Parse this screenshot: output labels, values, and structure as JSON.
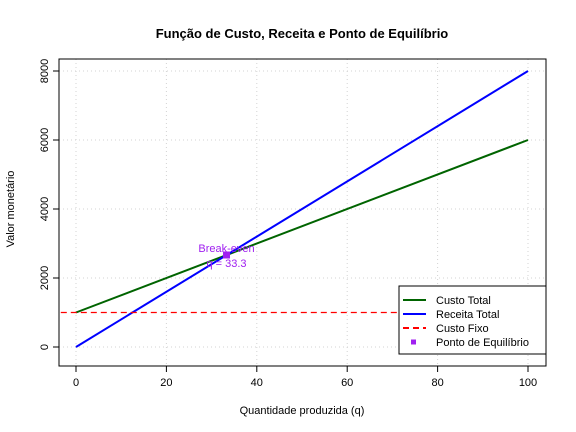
{
  "chart_data": {
    "type": "line",
    "title": "Função de Custo, Receita e Ponto de Equilíbrio",
    "xlabel": "Quantidade produzida (q)",
    "ylabel": "Valor monetário",
    "xlim": [
      0,
      100
    ],
    "ylim": [
      0,
      8000
    ],
    "xticks": [
      0,
      20,
      40,
      60,
      80,
      100
    ],
    "yticks": [
      0,
      2000,
      4000,
      6000,
      8000
    ],
    "grid": true,
    "legend_position": "bottom-right",
    "series": [
      {
        "name": "Custo Total",
        "color": "#006400",
        "style": "solid",
        "x": [
          0,
          100
        ],
        "y": [
          1000,
          6000
        ]
      },
      {
        "name": "Receita Total",
        "color": "#0000ff",
        "style": "solid",
        "x": [
          0,
          100
        ],
        "y": [
          0,
          8000
        ]
      },
      {
        "name": "Custo Fixo",
        "color": "#ff0000",
        "style": "dashed",
        "x": [
          -10,
          110
        ],
        "y": [
          1000,
          1000
        ]
      }
    ],
    "points": [
      {
        "name": "Ponto de Equilíbrio",
        "color": "#a020f0",
        "x": 33.3,
        "y": 2666.7
      }
    ],
    "annotations": [
      {
        "line1": "Break-even",
        "line2": "q = 33.3",
        "x": 33.3,
        "y": 2666.7,
        "color": "#a020f0"
      }
    ]
  }
}
